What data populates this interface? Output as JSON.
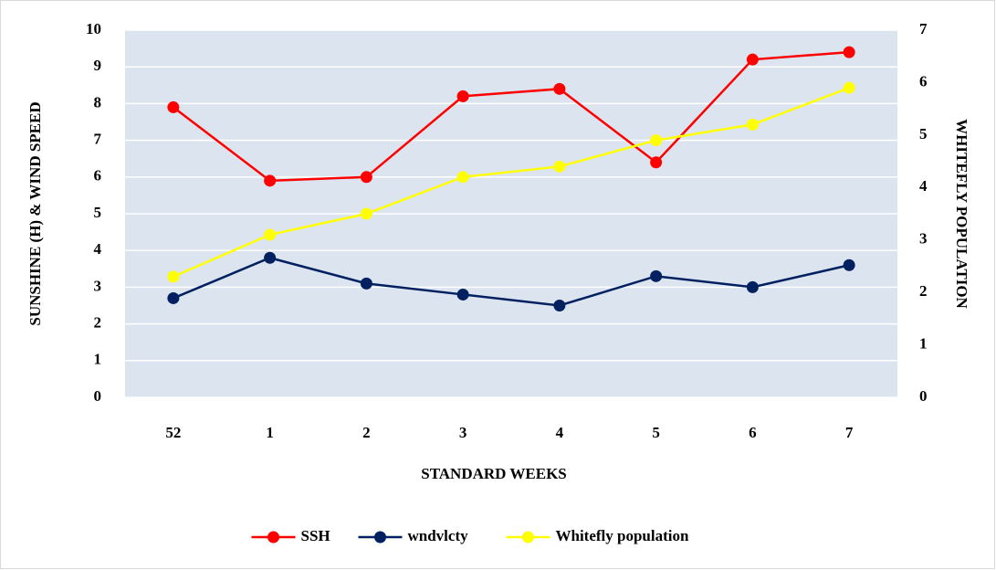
{
  "chart_data": {
    "type": "line",
    "x_label": "STANDARD WEEKS",
    "y_label": "SUNSHINE (H) & WIND SPEED",
    "y2_label": "WHITEFLY POPULATION",
    "categories": [
      "52",
      "1",
      "2",
      "3",
      "4",
      "5",
      "6",
      "7"
    ],
    "series": [
      {
        "name": "SSH",
        "color": "#ff0000",
        "values": [
          7.9,
          5.9,
          6.0,
          8.2,
          8.4,
          6.4,
          9.2,
          9.4
        ]
      },
      {
        "name": "wndvlcty",
        "color": "#002060",
        "values": [
          2.7,
          3.8,
          3.1,
          2.8,
          2.5,
          3.3,
          3.0,
          3.6
        ]
      },
      {
        "name": "Whitefly population",
        "color": "#ffff00",
        "axis": "y2",
        "values": [
          2.3,
          3.1,
          3.5,
          4.2,
          4.4,
          4.9,
          5.2,
          5.9
        ]
      }
    ],
    "ylim": [
      0,
      10
    ],
    "yticks": [
      0,
      1,
      2,
      3,
      4,
      5,
      6,
      7,
      8,
      9,
      10
    ],
    "y2lim": [
      0,
      7
    ],
    "y2ticks": [
      0,
      1,
      2,
      3,
      4,
      5,
      6,
      7
    ],
    "grid": true,
    "legend": "bottom"
  }
}
